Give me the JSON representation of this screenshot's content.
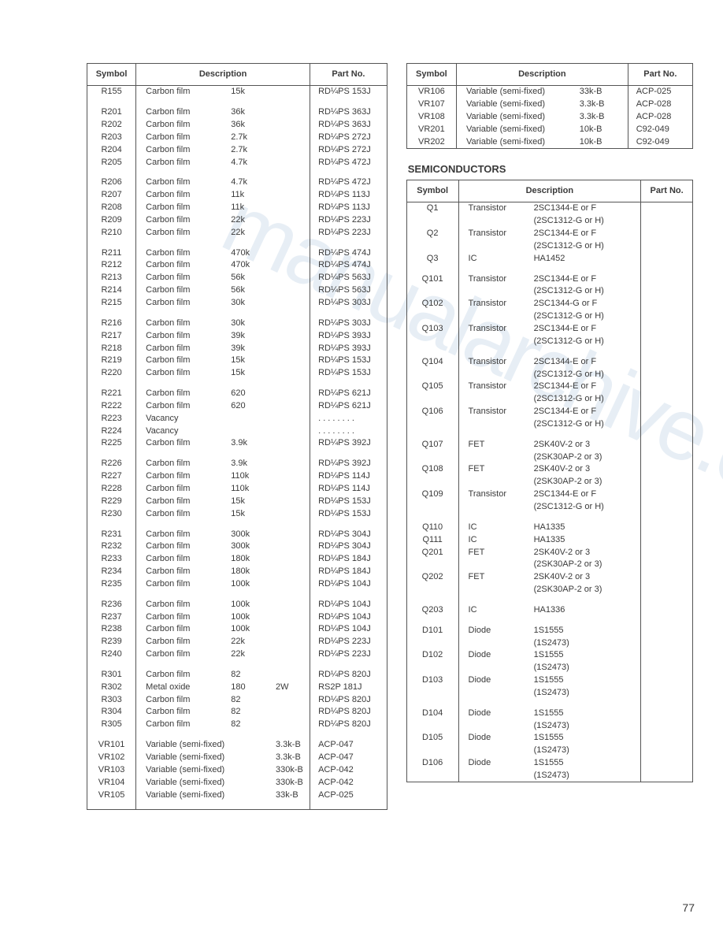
{
  "page_number": "77",
  "watermark_text": "manualarchive.com",
  "left_table": {
    "headers": {
      "symbol": "Symbol",
      "description": "Description",
      "part": "Part No."
    },
    "groups": [
      [
        {
          "sym": "R155",
          "d1": "Carbon film",
          "d2": "15k",
          "d3": "",
          "part": "RD¼PS 153J"
        }
      ],
      [
        {
          "sym": "R201",
          "d1": "Carbon film",
          "d2": "36k",
          "d3": "",
          "part": "RD¼PS 363J"
        },
        {
          "sym": "R202",
          "d1": "Carbon film",
          "d2": "36k",
          "d3": "",
          "part": "RD¼PS 363J"
        },
        {
          "sym": "R203",
          "d1": "Carbon film",
          "d2": "2.7k",
          "d3": "",
          "part": "RD¼PS 272J"
        },
        {
          "sym": "R204",
          "d1": "Carbon film",
          "d2": "2.7k",
          "d3": "",
          "part": "RD¼PS 272J"
        },
        {
          "sym": "R205",
          "d1": "Carbon film",
          "d2": "4.7k",
          "d3": "",
          "part": "RD¼PS 472J"
        }
      ],
      [
        {
          "sym": "R206",
          "d1": "Carbon film",
          "d2": "4.7k",
          "d3": "",
          "part": "RD¼PS 472J"
        },
        {
          "sym": "R207",
          "d1": "Carbon film",
          "d2": "11k",
          "d3": "",
          "part": "RD¼PS 113J"
        },
        {
          "sym": "R208",
          "d1": "Carbon film",
          "d2": "11k",
          "d3": "",
          "part": "RD¼PS 113J"
        },
        {
          "sym": "R209",
          "d1": "Carbon film",
          "d2": "22k",
          "d3": "",
          "part": "RD¼PS 223J"
        },
        {
          "sym": "R210",
          "d1": "Carbon film",
          "d2": "22k",
          "d3": "",
          "part": "RD¼PS 223J"
        }
      ],
      [
        {
          "sym": "R211",
          "d1": "Carbon film",
          "d2": "470k",
          "d3": "",
          "part": "RD¼PS 474J"
        },
        {
          "sym": "R212",
          "d1": "Carbon film",
          "d2": "470k",
          "d3": "",
          "part": "RD¼PS 474J"
        },
        {
          "sym": "R213",
          "d1": "Carbon film",
          "d2": "56k",
          "d3": "",
          "part": "RD¼PS 563J"
        },
        {
          "sym": "R214",
          "d1": "Carbon film",
          "d2": "56k",
          "d3": "",
          "part": "RD¼PS 563J"
        },
        {
          "sym": "R215",
          "d1": "Carbon film",
          "d2": "30k",
          "d3": "",
          "part": "RD¼PS 303J"
        }
      ],
      [
        {
          "sym": "R216",
          "d1": "Carbon film",
          "d2": "30k",
          "d3": "",
          "part": "RD¼PS 303J"
        },
        {
          "sym": "R217",
          "d1": "Carbon film",
          "d2": "39k",
          "d3": "",
          "part": "RD¼PS 393J"
        },
        {
          "sym": "R218",
          "d1": "Carbon film",
          "d2": "39k",
          "d3": "",
          "part": "RD¼PS 393J"
        },
        {
          "sym": "R219",
          "d1": "Carbon film",
          "d2": "15k",
          "d3": "",
          "part": "RD¼PS 153J"
        },
        {
          "sym": "R220",
          "d1": "Carbon film",
          "d2": "15k",
          "d3": "",
          "part": "RD¼PS 153J"
        }
      ],
      [
        {
          "sym": "R221",
          "d1": "Carbon film",
          "d2": "620",
          "d3": "",
          "part": "RD¼PS 621J"
        },
        {
          "sym": "R222",
          "d1": "Carbon film",
          "d2": "620",
          "d3": "",
          "part": "RD¼PS 621J"
        },
        {
          "sym": "R223",
          "d1": "Vacancy",
          "d2": "",
          "d3": "",
          "part": ". . . . . . . ."
        },
        {
          "sym": "R224",
          "d1": "Vacancy",
          "d2": "",
          "d3": "",
          "part": ". . . . . . . ."
        },
        {
          "sym": "R225",
          "d1": "Carbon film",
          "d2": "3.9k",
          "d3": "",
          "part": "RD¼PS 392J"
        }
      ],
      [
        {
          "sym": "R226",
          "d1": "Carbon film",
          "d2": "3.9k",
          "d3": "",
          "part": "RD¼PS 392J"
        },
        {
          "sym": "R227",
          "d1": "Carbon film",
          "d2": "110k",
          "d3": "",
          "part": "RD¼PS 114J"
        },
        {
          "sym": "R228",
          "d1": "Carbon film",
          "d2": "110k",
          "d3": "",
          "part": "RD¼PS 114J"
        },
        {
          "sym": "R229",
          "d1": "Carbon film",
          "d2": "15k",
          "d3": "",
          "part": "RD¼PS 153J"
        },
        {
          "sym": "R230",
          "d1": "Carbon film",
          "d2": "15k",
          "d3": "",
          "part": "RD¼PS 153J"
        }
      ],
      [
        {
          "sym": "R231",
          "d1": "Carbon film",
          "d2": "300k",
          "d3": "",
          "part": "RD¼PS 304J"
        },
        {
          "sym": "R232",
          "d1": "Carbon film",
          "d2": "300k",
          "d3": "",
          "part": "RD¼PS 304J"
        },
        {
          "sym": "R233",
          "d1": "Carbon film",
          "d2": "180k",
          "d3": "",
          "part": "RD¼PS 184J"
        },
        {
          "sym": "R234",
          "d1": "Carbon film",
          "d2": "180k",
          "d3": "",
          "part": "RD¼PS 184J"
        },
        {
          "sym": "R235",
          "d1": "Carbon film",
          "d2": "100k",
          "d3": "",
          "part": "RD¼PS 104J"
        }
      ],
      [
        {
          "sym": "R236",
          "d1": "Carbon film",
          "d2": "100k",
          "d3": "",
          "part": "RD¼PS 104J"
        },
        {
          "sym": "R237",
          "d1": "Carbon film",
          "d2": "100k",
          "d3": "",
          "part": "RD¼PS 104J"
        },
        {
          "sym": "R238",
          "d1": "Carbon film",
          "d2": "100k",
          "d3": "",
          "part": "RD¼PS 104J"
        },
        {
          "sym": "R239",
          "d1": "Carbon film",
          "d2": "22k",
          "d3": "",
          "part": "RD¼PS 223J"
        },
        {
          "sym": "R240",
          "d1": "Carbon film",
          "d2": "22k",
          "d3": "",
          "part": "RD¼PS 223J"
        }
      ],
      [
        {
          "sym": "R301",
          "d1": "Carbon film",
          "d2": "82",
          "d3": "",
          "part": "RD¼PS 820J"
        },
        {
          "sym": "R302",
          "d1": "Metal oxide",
          "d2": "180",
          "d3": "2W",
          "part": "RS2P 181J"
        },
        {
          "sym": "R303",
          "d1": "Carbon film",
          "d2": "82",
          "d3": "",
          "part": "RD¼PS 820J"
        },
        {
          "sym": "R304",
          "d1": "Carbon film",
          "d2": "82",
          "d3": "",
          "part": "RD¼PS 820J"
        },
        {
          "sym": "R305",
          "d1": "Carbon film",
          "d2": "82",
          "d3": "",
          "part": "RD¼PS 820J"
        }
      ],
      [
        {
          "sym": "VR101",
          "d1": "Variable (semi-fixed)",
          "d2": "",
          "d3": "3.3k-B",
          "part": "ACP-047"
        },
        {
          "sym": "VR102",
          "d1": "Variable (semi-fixed)",
          "d2": "",
          "d3": "3.3k-B",
          "part": "ACP-047"
        },
        {
          "sym": "VR103",
          "d1": "Variable (semi-fixed)",
          "d2": "",
          "d3": "330k-B",
          "part": "ACP-042"
        },
        {
          "sym": "VR104",
          "d1": "Variable (semi-fixed)",
          "d2": "",
          "d3": "330k-B",
          "part": "ACP-042"
        },
        {
          "sym": "VR105",
          "d1": "Variable (semi-fixed)",
          "d2": "",
          "d3": "33k-B",
          "part": "ACP-025"
        }
      ]
    ]
  },
  "vr_table": {
    "headers": {
      "symbol": "Symbol",
      "description": "Description",
      "part": "Part No."
    },
    "rows": [
      {
        "sym": "VR106",
        "desc": "Variable (semi-fixed)",
        "val": "33k-B",
        "part": "ACP-025"
      },
      {
        "sym": "VR107",
        "desc": "Variable (semi-fixed)",
        "val": "3.3k-B",
        "part": "ACP-028"
      },
      {
        "sym": "VR108",
        "desc": "Variable (semi-fixed)",
        "val": "3.3k-B",
        "part": "ACP-028"
      },
      {
        "sym": "VR201",
        "desc": "Variable (semi-fixed)",
        "val": "10k-B",
        "part": "C92-049"
      },
      {
        "sym": "VR202",
        "desc": "Variable (semi-fixed)",
        "val": "10k-B",
        "part": "C92-049"
      }
    ]
  },
  "semiconductors_title": "SEMICONDUCTORS",
  "semi_table": {
    "headers": {
      "symbol": "Symbol",
      "description": "Description",
      "part": "Part No."
    },
    "rows": [
      {
        "sym": "Q1",
        "type": "Transistor",
        "val": "2SC1344-E or F",
        "alt": "(2SC1312-G or H)"
      },
      {
        "sym": "Q2",
        "type": "Transistor",
        "val": "2SC1344-E or F",
        "alt": "(2SC1312-G or H)"
      },
      {
        "sym": "Q3",
        "type": "IC",
        "val": "HA1452",
        "alt": ""
      },
      {
        "gap": true
      },
      {
        "sym": "Q101",
        "type": "Transistor",
        "val": "2SC1344-E or F",
        "alt": "(2SC1312-G or H)"
      },
      {
        "sym": "Q102",
        "type": "Transistor",
        "val": "2SC1344-G or F",
        "alt": "(2SC1312-G or H)"
      },
      {
        "sym": "Q103",
        "type": "Transistor",
        "val": "2SC1344-E or F",
        "alt": "(2SC1312-G or H)"
      },
      {
        "gap": true
      },
      {
        "sym": "Q104",
        "type": "Transistor",
        "val": "2SC1344-E or F",
        "alt": "(2SC1312-G or H)"
      },
      {
        "sym": "Q105",
        "type": "Transistor",
        "val": "2SC1344-E or F",
        "alt": "(2SC1312-G or H)"
      },
      {
        "sym": "Q106",
        "type": "Transistor",
        "val": "2SC1344-E or F",
        "alt": "(2SC1312-G or H)"
      },
      {
        "gap": true
      },
      {
        "sym": "Q107",
        "type": "FET",
        "val": "2SK40V-2 or 3",
        "alt": "(2SK30AP-2 or 3)"
      },
      {
        "sym": "Q108",
        "type": "FET",
        "val": "2SK40V-2 or 3",
        "alt": "(2SK30AP-2 or 3)"
      },
      {
        "sym": "Q109",
        "type": "Transistor",
        "val": "2SC1344-E or F",
        "alt": "(2SC1312-G or H)"
      },
      {
        "gap": true
      },
      {
        "sym": "Q110",
        "type": "IC",
        "val": "HA1335",
        "alt": ""
      },
      {
        "sym": "Q111",
        "type": "IC",
        "val": "HA1335",
        "alt": ""
      },
      {
        "sym": "Q201",
        "type": "FET",
        "val": "2SK40V-2 or 3",
        "alt": "(2SK30AP-2 or 3)"
      },
      {
        "sym": "Q202",
        "type": "FET",
        "val": "2SK40V-2 or 3",
        "alt": "(2SK30AP-2 or 3)"
      },
      {
        "gap": true
      },
      {
        "sym": "Q203",
        "type": "IC",
        "val": "HA1336",
        "alt": ""
      },
      {
        "gap": true
      },
      {
        "sym": "D101",
        "type": "Diode",
        "val": "1S1555",
        "alt": "(1S2473)"
      },
      {
        "sym": "D102",
        "type": "Diode",
        "val": "1S1555",
        "alt": "(1S2473)"
      },
      {
        "sym": "D103",
        "type": "Diode",
        "val": "1S1555",
        "alt": "(1S2473)"
      },
      {
        "gap": true
      },
      {
        "sym": "D104",
        "type": "Diode",
        "val": "1S1555",
        "alt": "(1S2473)"
      },
      {
        "sym": "D105",
        "type": "Diode",
        "val": "1S1555",
        "alt": "(1S2473)"
      },
      {
        "sym": "D106",
        "type": "Diode",
        "val": "1S1555",
        "alt": "(1S2473)"
      }
    ]
  }
}
